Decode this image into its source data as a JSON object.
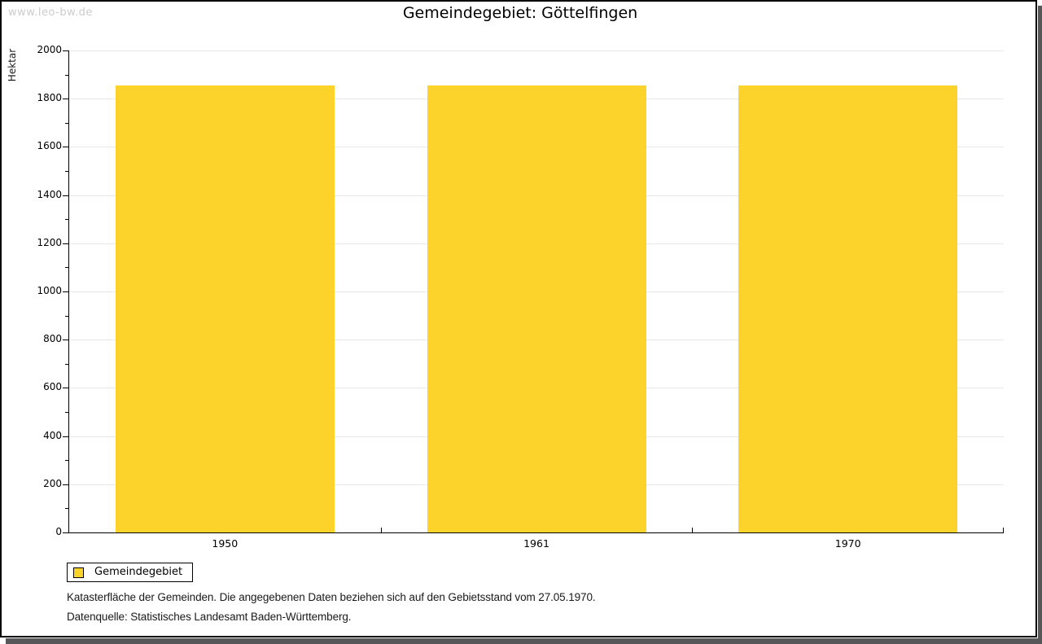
{
  "watermark": "www.leo-bw.de",
  "title": "Gemeindegebiet: Göttelfingen",
  "chart_data": {
    "type": "bar",
    "categories": [
      "1950",
      "1961",
      "1970"
    ],
    "values": [
      1855,
      1855,
      1855
    ],
    "title": "Gemeindegebiet: Göttelfingen",
    "xlabel": "",
    "ylabel": "Hektar",
    "ylim": [
      0,
      2000
    ],
    "ytick_major": 200,
    "ytick_minor": 100,
    "grid": "horizontal-major",
    "bar_color": "#FCD32B",
    "legend_position": "bottom-left"
  },
  "legend": {
    "items": [
      {
        "label": "Gemeindegebiet",
        "color": "#FCD32B"
      }
    ]
  },
  "footnotes": [
    "Katasterfläche der Gemeinden. Die angegebenen Daten beziehen sich auf den Gebietsstand vom 27.05.1970.",
    "Datenquelle: Statistisches Landesamt Baden-Württemberg."
  ],
  "colors": {
    "bar": "#FCD32B",
    "gridline": "#e7e7e7",
    "axis": "#000000",
    "watermark": "#cccccc",
    "shadow": "#57575a"
  }
}
